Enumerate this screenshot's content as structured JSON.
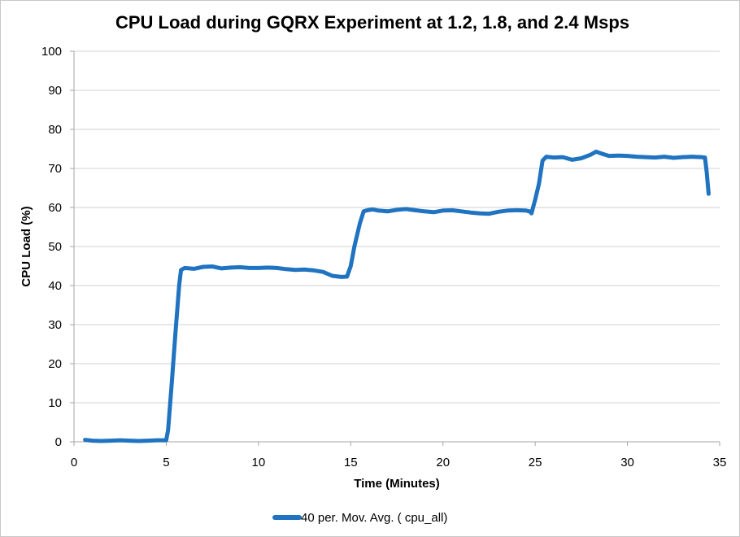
{
  "chart_data": {
    "type": "line",
    "title": "CPU Load during GQRX Experiment at 1.2, 1.8, and 2.4 Msps",
    "xlabel": "Time (Minutes)",
    "ylabel": "CPU Load (%)",
    "xlim": [
      0,
      35
    ],
    "ylim": [
      0,
      100
    ],
    "x_ticks": [
      "0",
      "5",
      "10",
      "15",
      "20",
      "25",
      "30",
      "35"
    ],
    "y_ticks": [
      "0",
      "10",
      "20",
      "30",
      "40",
      "50",
      "60",
      "70",
      "80",
      "90",
      "100"
    ],
    "grid": "horizontal",
    "legend_position": "bottom",
    "colors": {
      "series": "#1f73c0",
      "grid": "#d0d0d0",
      "axis": "#a6a6a6"
    },
    "series": [
      {
        "name": "40 per. Mov. Avg. ( cpu_all)",
        "x": [
          0.6,
          1.0,
          1.5,
          2.0,
          2.5,
          3.0,
          3.5,
          4.0,
          4.5,
          5.0,
          5.1,
          5.3,
          5.5,
          5.7,
          5.8,
          6.0,
          6.5,
          7.0,
          7.5,
          8.0,
          8.5,
          9.0,
          9.5,
          10.0,
          10.5,
          11.0,
          11.5,
          12.0,
          12.5,
          13.0,
          13.5,
          14.0,
          14.5,
          14.8,
          15.0,
          15.2,
          15.5,
          15.7,
          15.9,
          16.2,
          16.5,
          17.0,
          17.5,
          18.0,
          18.5,
          19.0,
          19.5,
          20.0,
          20.5,
          21.0,
          21.5,
          22.0,
          22.5,
          23.0,
          23.5,
          24.0,
          24.5,
          24.7,
          24.8,
          25.0,
          25.2,
          25.4,
          25.6,
          26.0,
          26.5,
          27.0,
          27.5,
          28.0,
          28.3,
          28.6,
          29.0,
          29.5,
          30.0,
          30.5,
          31.0,
          31.5,
          32.0,
          32.5,
          33.0,
          33.5,
          34.0,
          34.2,
          34.3,
          34.4
        ],
        "values": [
          0.5,
          0.3,
          0.2,
          0.3,
          0.4,
          0.3,
          0.2,
          0.3,
          0.4,
          0.4,
          3.0,
          15.0,
          28.0,
          40.0,
          44.0,
          44.5,
          44.3,
          44.8,
          44.9,
          44.4,
          44.6,
          44.7,
          44.5,
          44.5,
          44.6,
          44.5,
          44.2,
          44.0,
          44.1,
          43.9,
          43.5,
          42.5,
          42.2,
          42.3,
          45.0,
          50.0,
          56.0,
          59.0,
          59.3,
          59.5,
          59.2,
          59.0,
          59.4,
          59.6,
          59.3,
          59.0,
          58.8,
          59.2,
          59.3,
          59.0,
          58.7,
          58.5,
          58.4,
          58.9,
          59.2,
          59.3,
          59.2,
          59.0,
          58.5,
          62.0,
          66.0,
          72.0,
          73.0,
          72.8,
          72.9,
          72.2,
          72.6,
          73.5,
          74.3,
          73.8,
          73.2,
          73.3,
          73.2,
          73.0,
          72.9,
          72.8,
          73.0,
          72.7,
          72.9,
          73.0,
          72.9,
          72.8,
          69.0,
          63.5
        ]
      }
    ]
  }
}
